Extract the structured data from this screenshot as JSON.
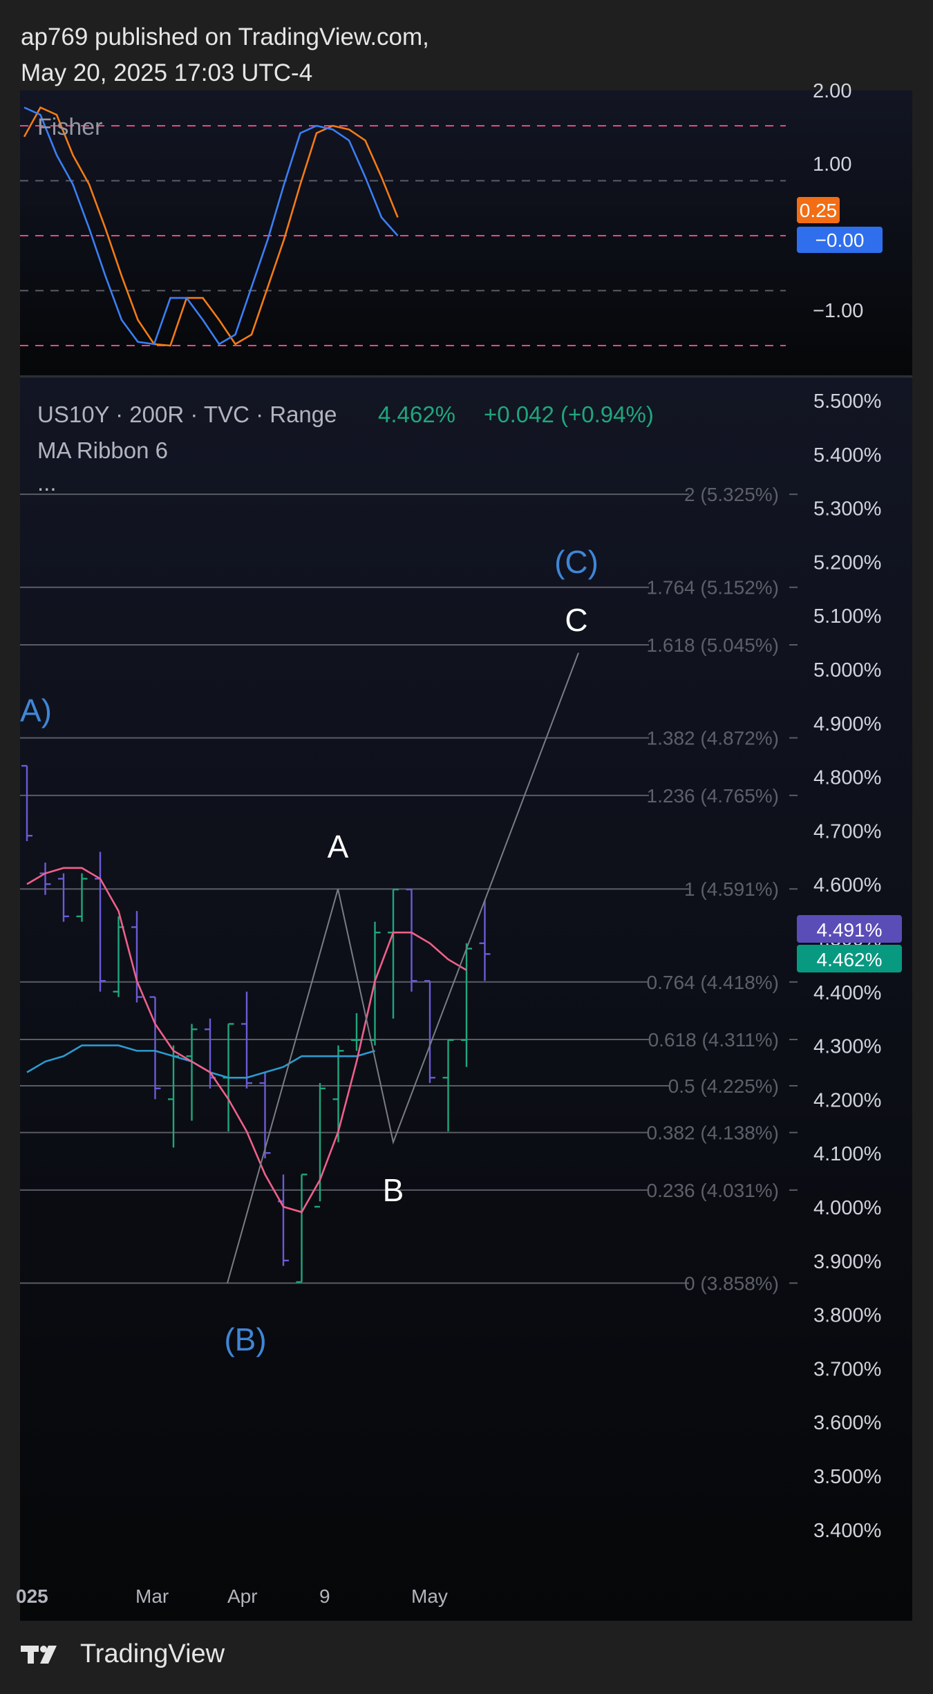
{
  "header": {
    "line1": "ap769 published on TradingView.com,",
    "line2": "May 20, 2025 17:03 UTC-4"
  },
  "footer": {
    "brand": "TradingView"
  },
  "colors": {
    "background": "#1f1f1f",
    "panel": "#0d0f18",
    "fisher": "#3b7ff5",
    "trigger": "#f47b16",
    "levels_red": "#e84a7f",
    "ribbon_fast": "#f0608a",
    "ribbon_slow": "#2b9bd0",
    "bar_up": "#1fa77c",
    "bar_down": "#6b5bd6",
    "wave_label": "#3f86d6",
    "fib_line": "#5a5d66",
    "price_badge_purple": "#5b4db8",
    "price_badge_green": "#089981",
    "fisher_badge_blue": "#2f6fed",
    "trigger_badge_orange": "#f26d14"
  },
  "indicator": {
    "name": "Fisher",
    "y_ticks": [
      "2.00",
      "1.00",
      "−1.00"
    ],
    "badge_trigger": "0.25",
    "badge_fisher": "−0.00"
  },
  "legend": {
    "symbol": "US10Y · 200R · TVC · Range",
    "price": "4.462%",
    "change": "+0.042 (+0.94%)",
    "ribbon": "MA Ribbon 6",
    "more": "..."
  },
  "price_axis": {
    "ticks": [
      "5.500%",
      "5.400%",
      "5.300%",
      "5.200%",
      "5.100%",
      "5.000%",
      "4.900%",
      "4.800%",
      "4.700%",
      "4.600%",
      "4.500%",
      "4.400%",
      "4.300%",
      "4.200%",
      "4.100%",
      "4.000%",
      "3.900%",
      "3.800%",
      "3.700%",
      "3.600%",
      "3.500%",
      "3.400%"
    ],
    "badge_ribbon": "4.491%",
    "badge_last": "4.462%"
  },
  "time_axis": {
    "ticks": [
      "025",
      "Mar",
      "Apr",
      "9",
      "May"
    ]
  },
  "fib_levels": [
    {
      "ratio": 2,
      "label": "2 (5.325%)"
    },
    {
      "ratio": 1.764,
      "label": "1.764 (5.152%)"
    },
    {
      "ratio": 1.618,
      "label": "1.618 (5.045%)"
    },
    {
      "ratio": 1.382,
      "label": "1.382 (4.872%)"
    },
    {
      "ratio": 1.236,
      "label": "1.236 (4.765%)"
    },
    {
      "ratio": 1,
      "label": "1 (4.591%)"
    },
    {
      "ratio": 0.764,
      "label": "0.764 (4.418%)"
    },
    {
      "ratio": 0.618,
      "label": "0.618 (4.311%)"
    },
    {
      "ratio": 0.5,
      "label": "0.5 (4.225%)"
    },
    {
      "ratio": 0.382,
      "label": "0.382 (4.138%)"
    },
    {
      "ratio": 0.236,
      "label": "0.236 (4.031%)"
    },
    {
      "ratio": 0,
      "label": "0 (3.858%)"
    }
  ],
  "wave_labels": {
    "major_a": "A)",
    "major_b": "(B)",
    "major_c": "(C)",
    "minor_a": "A",
    "minor_b": "B",
    "minor_c": "C"
  },
  "chart_data": {
    "type": "line",
    "ylim": [
      3.35,
      5.55
    ],
    "bars": [
      {
        "o": 4.82,
        "h": 4.82,
        "l": 4.68,
        "c": 4.69
      },
      {
        "o": 4.62,
        "h": 4.64,
        "l": 4.58,
        "c": 4.6
      },
      {
        "o": 4.61,
        "h": 4.62,
        "l": 4.53,
        "c": 4.54
      },
      {
        "o": 4.54,
        "h": 4.62,
        "l": 4.53,
        "c": 4.61
      },
      {
        "o": 4.61,
        "h": 4.66,
        "l": 4.4,
        "c": 4.42
      },
      {
        "o": 4.4,
        "h": 4.54,
        "l": 4.39,
        "c": 4.52
      },
      {
        "o": 4.52,
        "h": 4.55,
        "l": 4.38,
        "c": 4.39
      },
      {
        "o": 4.39,
        "h": 4.39,
        "l": 4.2,
        "c": 4.22
      },
      {
        "o": 4.2,
        "h": 4.3,
        "l": 4.11,
        "c": 4.28
      },
      {
        "o": 4.28,
        "h": 4.34,
        "l": 4.16,
        "c": 4.33
      },
      {
        "o": 4.33,
        "h": 4.35,
        "l": 4.22,
        "c": 4.24
      },
      {
        "o": 4.24,
        "h": 4.34,
        "l": 4.14,
        "c": 4.34
      },
      {
        "o": 4.34,
        "h": 4.4,
        "l": 4.22,
        "c": 4.23
      },
      {
        "o": 4.23,
        "h": 4.25,
        "l": 4.09,
        "c": 4.1
      },
      {
        "o": 4.01,
        "h": 4.06,
        "l": 3.89,
        "c": 3.9
      },
      {
        "o": 3.86,
        "h": 4.06,
        "l": 3.86,
        "c": 4.06
      },
      {
        "o": 4.0,
        "h": 4.23,
        "l": 4.01,
        "c": 4.22
      },
      {
        "o": 4.2,
        "h": 4.3,
        "l": 4.12,
        "c": 4.29
      },
      {
        "o": 4.31,
        "h": 4.36,
        "l": 4.29,
        "c": 4.31
      },
      {
        "o": 4.31,
        "h": 4.53,
        "l": 4.3,
        "c": 4.51
      },
      {
        "o": 4.51,
        "h": 4.59,
        "l": 4.35,
        "c": 4.59
      },
      {
        "o": 4.59,
        "h": 4.59,
        "l": 4.4,
        "c": 4.42
      },
      {
        "o": 4.42,
        "h": 4.42,
        "l": 4.23,
        "c": 4.24
      },
      {
        "o": 4.24,
        "h": 4.31,
        "l": 4.14,
        "c": 4.31
      },
      {
        "o": 4.31,
        "h": 4.49,
        "l": 4.26,
        "c": 4.48
      },
      {
        "o": 4.49,
        "h": 4.57,
        "l": 4.42,
        "c": 4.47
      }
    ],
    "ribbon_fast": [
      4.6,
      4.62,
      4.63,
      4.63,
      4.61,
      4.55,
      4.42,
      4.34,
      4.29,
      4.27,
      4.25,
      4.2,
      4.14,
      4.06,
      4.0,
      3.99,
      4.05,
      4.14,
      4.27,
      4.42,
      4.51,
      4.51,
      4.49,
      4.46,
      4.44
    ],
    "ribbon_slow": [
      4.25,
      4.27,
      4.28,
      4.3,
      4.3,
      4.3,
      4.29,
      4.29,
      4.28,
      4.27,
      4.25,
      4.24,
      4.24,
      4.25,
      4.26,
      4.28,
      4.28,
      4.28,
      4.28,
      4.29
    ],
    "fisher": [
      1.75,
      1.65,
      1.1,
      0.7,
      0.1,
      -0.55,
      -1.15,
      -1.45,
      -1.48,
      -0.85,
      -0.85,
      -1.15,
      -1.48,
      -1.35,
      -0.7,
      -0.05,
      0.7,
      1.4,
      1.5,
      1.45,
      1.3,
      0.8,
      0.25,
      0.0
    ],
    "fisher_trigger": [
      1.35,
      1.75,
      1.65,
      1.1,
      0.7,
      0.1,
      -0.55,
      -1.15,
      -1.48,
      -1.5,
      -0.85,
      -0.85,
      -1.15,
      -1.48,
      -1.35,
      -0.7,
      -0.05,
      0.7,
      1.4,
      1.5,
      1.45,
      1.3,
      0.8,
      0.25
    ],
    "fisher_levels": [
      1.5,
      0.75,
      0,
      -0.75,
      -1.5
    ],
    "wave_path": [
      3.858,
      4.591,
      4.12,
      5.03
    ]
  }
}
